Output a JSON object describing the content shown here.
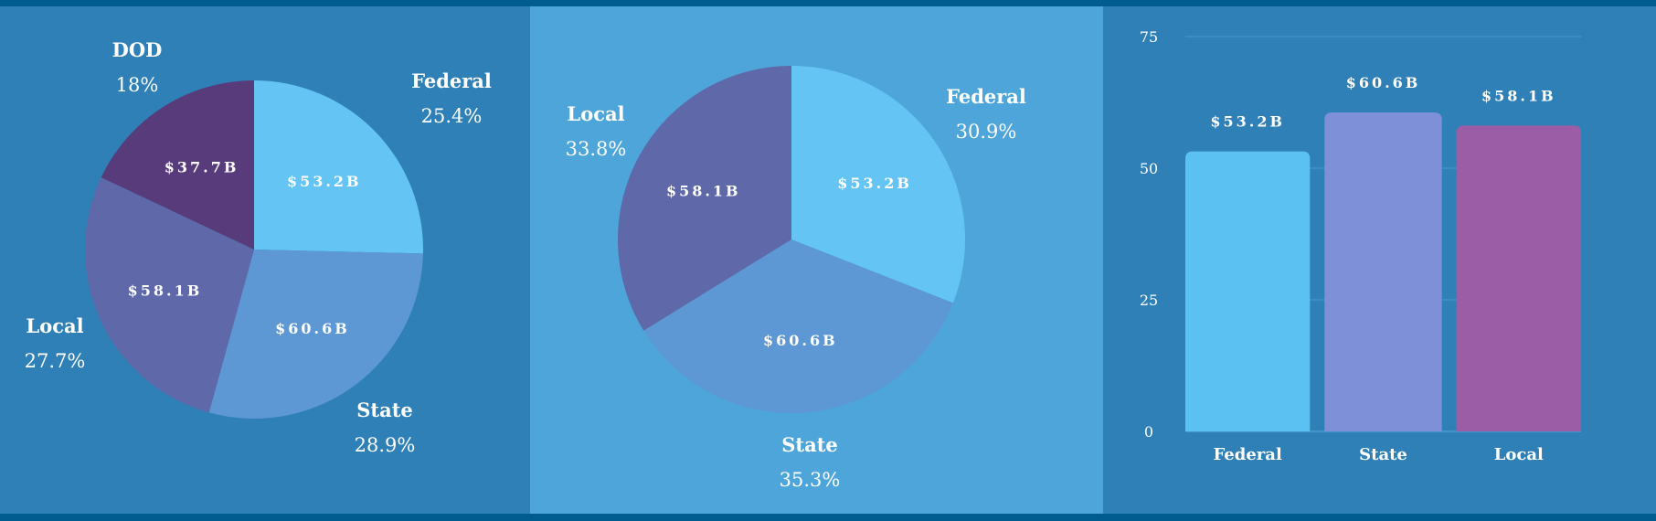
{
  "chart_data": [
    {
      "type": "pie",
      "categories": [
        "Federal",
        "State",
        "Local",
        "DOD"
      ],
      "values": [
        53.2,
        60.6,
        58.1,
        37.7
      ],
      "value_labels": [
        "$53.2B",
        "$60.6B",
        "$58.1B",
        "$37.7B"
      ],
      "percent_labels": [
        "25.4%",
        "28.9%",
        "27.7%",
        "18%"
      ],
      "colors": [
        "#64c4f3",
        "#5d98d4",
        "#5f68a8",
        "#573b7b"
      ]
    },
    {
      "type": "pie",
      "categories": [
        "Federal",
        "State",
        "Local"
      ],
      "values": [
        53.2,
        60.6,
        58.1
      ],
      "value_labels": [
        "$53.2B",
        "$60.6B",
        "$58.1B"
      ],
      "percent_labels": [
        "30.9%",
        "35.3%",
        "33.8%"
      ],
      "colors": [
        "#64c4f3",
        "#5d98d4",
        "#5f68a8"
      ]
    },
    {
      "type": "bar",
      "categories": [
        "Federal",
        "State",
        "Local"
      ],
      "values": [
        53.2,
        60.6,
        58.1
      ],
      "value_labels": [
        "$53.2B",
        "$60.6B",
        "$58.1B"
      ],
      "colors": [
        "#5bc0f2",
        "#7e91d8",
        "#9b5ea6"
      ],
      "ylim": [
        0,
        75
      ],
      "yticks": [
        "0",
        "25",
        "50",
        "75"
      ],
      "ytick_values": [
        0,
        25,
        50,
        75
      ],
      "grid": true
    }
  ]
}
